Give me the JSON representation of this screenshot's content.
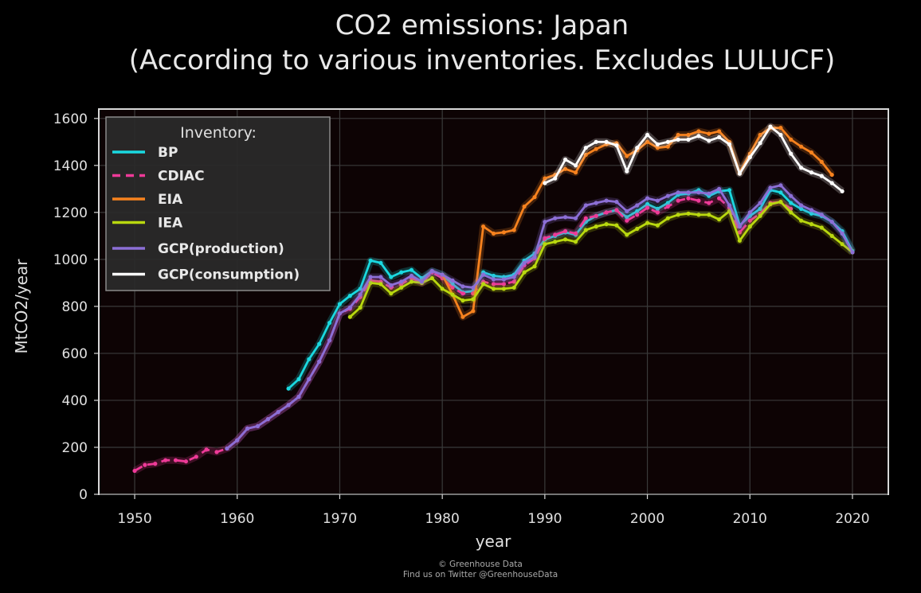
{
  "chart_data": {
    "type": "line",
    "title": "CO2 emissions: Japan",
    "subtitle": "(According to various inventories. Excludes LULUCF)",
    "xlabel": "year",
    "ylabel": "MtCO2/year",
    "xlim": [
      1946.5,
      2023.5
    ],
    "ylim": [
      0,
      1640
    ],
    "xticks": [
      1950,
      1960,
      1970,
      1980,
      1990,
      2000,
      2010,
      2020
    ],
    "yticks": [
      0,
      200,
      400,
      600,
      800,
      1000,
      1200,
      1400,
      1600
    ],
    "grid": true,
    "legend": {
      "title": "Inventory:",
      "position": "top-left"
    },
    "series": [
      {
        "name": "BP",
        "color": "#1ad9e0",
        "style": "solid",
        "x": [
          1965,
          1966,
          1967,
          1968,
          1969,
          1970,
          1971,
          1972,
          1973,
          1974,
          1975,
          1976,
          1977,
          1978,
          1979,
          1980,
          1981,
          1982,
          1983,
          1984,
          1985,
          1986,
          1987,
          1988,
          1989,
          1990,
          1991,
          1992,
          1993,
          1994,
          1995,
          1996,
          1997,
          1998,
          1999,
          2000,
          2001,
          2002,
          2003,
          2004,
          2005,
          2006,
          2007,
          2008,
          2009,
          2010,
          2011,
          2012,
          2013,
          2014,
          2015,
          2016,
          2017,
          2018,
          2019,
          2020
        ],
        "y": [
          450,
          490,
          575,
          640,
          730,
          810,
          845,
          875,
          995,
          985,
          925,
          945,
          955,
          920,
          950,
          935,
          895,
          860,
          865,
          945,
          930,
          925,
          935,
          995,
          1025,
          1085,
          1100,
          1115,
          1105,
          1160,
          1185,
          1200,
          1210,
          1180,
          1205,
          1235,
          1215,
          1240,
          1275,
          1280,
          1295,
          1270,
          1290,
          1295,
          1145,
          1185,
          1215,
          1295,
          1285,
          1240,
          1215,
          1195,
          1185,
          1160,
          1120,
          1035
        ]
      },
      {
        "name": "CDIAC",
        "color": "#ee3a98",
        "style": "dashed",
        "x": [
          1950,
          1951,
          1952,
          1953,
          1954,
          1955,
          1956,
          1957,
          1958,
          1959,
          1960,
          1961,
          1962,
          1963,
          1964,
          1965,
          1966,
          1967,
          1968,
          1969,
          1970,
          1971,
          1972,
          1973,
          1974,
          1975,
          1976,
          1977,
          1978,
          1979,
          1980,
          1981,
          1982,
          1983,
          1984,
          1985,
          1986,
          1987,
          1988,
          1989,
          1990,
          1991,
          1992,
          1993,
          1994,
          1995,
          1996,
          1997,
          1998,
          1999,
          2000,
          2001,
          2002,
          2003,
          2004,
          2005,
          2006,
          2007,
          2008,
          2009,
          2010,
          2011,
          2012,
          2013,
          2014
        ],
        "y": [
          100,
          125,
          130,
          145,
          145,
          140,
          160,
          190,
          180,
          195,
          230,
          280,
          290,
          320,
          350,
          380,
          415,
          490,
          565,
          655,
          770,
          790,
          840,
          910,
          905,
          880,
          895,
          920,
          900,
          945,
          920,
          880,
          855,
          855,
          905,
          895,
          895,
          905,
          975,
          1005,
          1090,
          1105,
          1120,
          1110,
          1175,
          1185,
          1200,
          1210,
          1165,
          1190,
          1220,
          1200,
          1225,
          1250,
          1260,
          1250,
          1240,
          1260,
          1220,
          1115,
          1165,
          1195,
          1240,
          1245,
          1215
        ]
      },
      {
        "name": "EIA",
        "color": "#f7821e",
        "style": "solid",
        "x": [
          1980,
          1981,
          1982,
          1983,
          1984,
          1985,
          1986,
          1987,
          1988,
          1989,
          1990,
          1991,
          1992,
          1993,
          1994,
          1995,
          1996,
          1997,
          1998,
          1999,
          2000,
          2001,
          2002,
          2003,
          2004,
          2005,
          2006,
          2007,
          2008,
          2009,
          2010,
          2011,
          2012,
          2013,
          2014,
          2015,
          2016,
          2017,
          2018
        ],
        "y": [
          935,
          850,
          755,
          780,
          1140,
          1110,
          1115,
          1125,
          1225,
          1265,
          1345,
          1360,
          1385,
          1370,
          1445,
          1470,
          1490,
          1495,
          1440,
          1465,
          1500,
          1475,
          1480,
          1530,
          1530,
          1545,
          1535,
          1545,
          1500,
          1370,
          1450,
          1530,
          1560,
          1560,
          1510,
          1480,
          1455,
          1415,
          1360
        ]
      },
      {
        "name": "IEA",
        "color": "#b9d80f",
        "style": "solid",
        "x": [
          1971,
          1972,
          1973,
          1974,
          1975,
          1976,
          1977,
          1978,
          1979,
          1980,
          1981,
          1982,
          1983,
          1984,
          1985,
          1986,
          1987,
          1988,
          1989,
          1990,
          1991,
          1992,
          1993,
          1994,
          1995,
          1996,
          1997,
          1998,
          1999,
          2000,
          2001,
          2002,
          2003,
          2004,
          2005,
          2006,
          2007,
          2008,
          2009,
          2010,
          2011,
          2012,
          2013,
          2014,
          2015,
          2016,
          2017,
          2018,
          2019,
          2020
        ],
        "y": [
          755,
          795,
          900,
          895,
          855,
          880,
          905,
          900,
          920,
          875,
          850,
          825,
          830,
          895,
          875,
          875,
          880,
          945,
          970,
          1065,
          1075,
          1085,
          1075,
          1125,
          1140,
          1150,
          1145,
          1105,
          1130,
          1155,
          1145,
          1175,
          1190,
          1195,
          1190,
          1190,
          1170,
          1205,
          1080,
          1140,
          1185,
          1235,
          1245,
          1200,
          1165,
          1150,
          1135,
          1100,
          1065,
          1030
        ]
      },
      {
        "name": "GCP(production)",
        "color": "#8c6fd6",
        "style": "solid",
        "x": [
          1959,
          1960,
          1961,
          1962,
          1963,
          1964,
          1965,
          1966,
          1967,
          1968,
          1969,
          1970,
          1971,
          1972,
          1973,
          1974,
          1975,
          1976,
          1977,
          1978,
          1979,
          1980,
          1981,
          1982,
          1983,
          1984,
          1985,
          1986,
          1987,
          1988,
          1989,
          1990,
          1991,
          1992,
          1993,
          1994,
          1995,
          1996,
          1997,
          1998,
          1999,
          2000,
          2001,
          2002,
          2003,
          2004,
          2005,
          2006,
          2007,
          2008,
          2009,
          2010,
          2011,
          2012,
          2013,
          2014,
          2015,
          2016,
          2017,
          2018,
          2019,
          2020
        ],
        "y": [
          195,
          230,
          280,
          290,
          320,
          350,
          380,
          415,
          490,
          565,
          655,
          770,
          795,
          850,
          925,
          925,
          890,
          905,
          930,
          905,
          950,
          935,
          910,
          885,
          880,
          935,
          915,
          915,
          925,
          985,
          1010,
          1160,
          1175,
          1180,
          1175,
          1230,
          1240,
          1250,
          1245,
          1205,
          1230,
          1260,
          1250,
          1270,
          1285,
          1285,
          1285,
          1280,
          1300,
          1230,
          1140,
          1200,
          1240,
          1305,
          1315,
          1270,
          1230,
          1210,
          1190,
          1160,
          1110,
          1030
        ]
      },
      {
        "name": "GCP(consumption)",
        "color": "#ffffff",
        "style": "solid",
        "x": [
          1990,
          1991,
          1992,
          1993,
          1994,
          1995,
          1996,
          1997,
          1998,
          1999,
          2000,
          2001,
          2002,
          2003,
          2004,
          2005,
          2006,
          2007,
          2008,
          2009,
          2010,
          2011,
          2012,
          2013,
          2014,
          2015,
          2016,
          2017,
          2018,
          2019
        ],
        "y": [
          1325,
          1345,
          1425,
          1400,
          1475,
          1500,
          1500,
          1485,
          1375,
          1475,
          1530,
          1490,
          1500,
          1510,
          1510,
          1525,
          1505,
          1520,
          1490,
          1365,
          1435,
          1495,
          1565,
          1530,
          1450,
          1390,
          1370,
          1355,
          1325,
          1290
        ]
      }
    ]
  },
  "footer": {
    "credit_line1": "© Greenhouse Data",
    "credit_line2": "Find us on Twitter @GreenhouseData"
  }
}
